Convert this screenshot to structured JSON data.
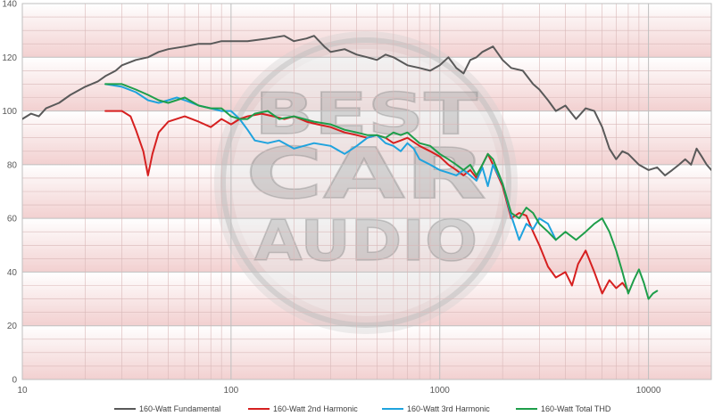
{
  "chart_data": {
    "type": "line",
    "x_scale": "log",
    "xlim": [
      10,
      20000
    ],
    "ylim": [
      0,
      140
    ],
    "y_ticks": [
      0,
      20,
      40,
      60,
      80,
      100,
      120,
      140
    ],
    "x_tick_labels": [
      "10",
      "100",
      "1000",
      "10000"
    ],
    "grid": true,
    "legend_position": "bottom",
    "watermark_text": "BEST CAR AUDIO",
    "colors": {
      "fundamental": "#595959",
      "harmonic2": "#d62020",
      "harmonic3": "#1fa3de",
      "thd": "#1e9e4a",
      "band_top": "#ffffff",
      "band_bottom": "#f2d0d0",
      "grid": "#d9b8b8"
    },
    "series": [
      {
        "name": "160-Watt Fundamental",
        "color": "#595959",
        "x": [
          10,
          11,
          12,
          13,
          15,
          17,
          20,
          23,
          25,
          28,
          30,
          35,
          40,
          45,
          50,
          60,
          70,
          80,
          90,
          100,
          120,
          150,
          180,
          200,
          230,
          250,
          280,
          300,
          350,
          400,
          450,
          500,
          550,
          600,
          700,
          800,
          900,
          1000,
          1100,
          1200,
          1300,
          1400,
          1500,
          1600,
          1800,
          2000,
          2200,
          2500,
          2800,
          3000,
          3300,
          3600,
          4000,
          4500,
          5000,
          5500,
          6000,
          6500,
          7000,
          7500,
          8000,
          9000,
          10000,
          11000,
          12000,
          13000,
          14000,
          15000,
          16000,
          17000,
          18000,
          19000,
          20000
        ],
        "values": [
          97,
          99,
          98,
          101,
          103,
          106,
          109,
          111,
          113,
          115,
          117,
          119,
          120,
          122,
          123,
          124,
          125,
          125,
          126,
          126,
          126,
          127,
          128,
          126,
          127,
          128,
          124,
          122,
          123,
          121,
          120,
          119,
          121,
          120,
          117,
          116,
          115,
          117,
          120,
          116,
          114,
          119,
          120,
          122,
          124,
          119,
          116,
          115,
          110,
          108,
          104,
          100,
          102,
          97,
          101,
          100,
          94,
          86,
          82,
          85,
          84,
          80,
          78,
          79,
          76,
          78,
          80,
          82,
          80,
          86,
          83,
          80,
          78
        ]
      },
      {
        "name": "160-Watt 2nd Harmonic",
        "color": "#d62020",
        "x": [
          25,
          28,
          30,
          33,
          35,
          38,
          40,
          42,
          45,
          50,
          60,
          70,
          80,
          90,
          100,
          110,
          120,
          140,
          160,
          180,
          200,
          230,
          260,
          300,
          350,
          400,
          450,
          500,
          550,
          600,
          650,
          700,
          800,
          900,
          1000,
          1100,
          1200,
          1300,
          1400,
          1500,
          1600,
          1700,
          1800,
          2000,
          2200,
          2400,
          2600,
          2800,
          3000,
          3300,
          3600,
          4000,
          4300,
          4600,
          5000,
          5500,
          6000,
          6500,
          7000,
          7500,
          8000
        ],
        "values": [
          100,
          100,
          100,
          98,
          93,
          85,
          76,
          84,
          92,
          96,
          98,
          96,
          94,
          97,
          95,
          97,
          98,
          99,
          98,
          97,
          98,
          96,
          95,
          94,
          92,
          91,
          90,
          91,
          90,
          88,
          89,
          90,
          87,
          85,
          83,
          80,
          78,
          76,
          78,
          75,
          80,
          84,
          80,
          72,
          60,
          62,
          61,
          55,
          50,
          42,
          38,
          40,
          35,
          43,
          48,
          40,
          32,
          37,
          34,
          36,
          33
        ]
      },
      {
        "name": "160-Watt 3rd Harmonic",
        "color": "#1fa3de",
        "x": [
          25,
          30,
          35,
          40,
          45,
          50,
          55,
          60,
          70,
          80,
          90,
          100,
          110,
          120,
          130,
          150,
          170,
          200,
          250,
          300,
          350,
          400,
          450,
          500,
          550,
          600,
          650,
          700,
          750,
          800,
          900,
          1000,
          1100,
          1200,
          1300,
          1400,
          1500,
          1600,
          1700,
          1800,
          2000,
          2200,
          2400,
          2600,
          2800,
          3000,
          3300,
          3600
        ],
        "values": [
          110,
          109,
          107,
          104,
          103,
          104,
          105,
          104,
          102,
          101,
          100,
          100,
          97,
          93,
          89,
          88,
          89,
          86,
          88,
          87,
          84,
          87,
          90,
          91,
          88,
          87,
          85,
          88,
          86,
          82,
          80,
          78,
          77,
          76,
          78,
          76,
          74,
          79,
          72,
          80,
          73,
          61,
          52,
          58,
          56,
          60,
          58,
          52
        ]
      },
      {
        "name": "160-Watt Total THD",
        "color": "#1e9e4a",
        "x": [
          25,
          30,
          35,
          40,
          45,
          50,
          60,
          70,
          80,
          90,
          100,
          110,
          120,
          130,
          150,
          170,
          200,
          250,
          300,
          350,
          400,
          450,
          500,
          550,
          600,
          650,
          700,
          800,
          900,
          1000,
          1100,
          1200,
          1300,
          1400,
          1500,
          1600,
          1700,
          1800,
          2000,
          2200,
          2400,
          2600,
          2800,
          3000,
          3300,
          3600,
          4000,
          4500,
          5000,
          5500,
          6000,
          6500,
          7000,
          7500,
          8000,
          8500,
          9000,
          9500,
          10000,
          10500,
          11000
        ],
        "values": [
          110,
          110,
          108,
          106,
          104,
          103,
          105,
          102,
          101,
          101,
          98,
          97,
          97,
          99,
          100,
          97,
          98,
          96,
          95,
          93,
          92,
          91,
          91,
          90,
          92,
          91,
          92,
          88,
          87,
          84,
          82,
          80,
          78,
          80,
          76,
          80,
          84,
          82,
          73,
          62,
          60,
          64,
          62,
          58,
          55,
          52,
          55,
          52,
          55,
          58,
          60,
          55,
          48,
          40,
          32,
          37,
          41,
          36,
          30,
          32,
          33
        ]
      }
    ]
  }
}
